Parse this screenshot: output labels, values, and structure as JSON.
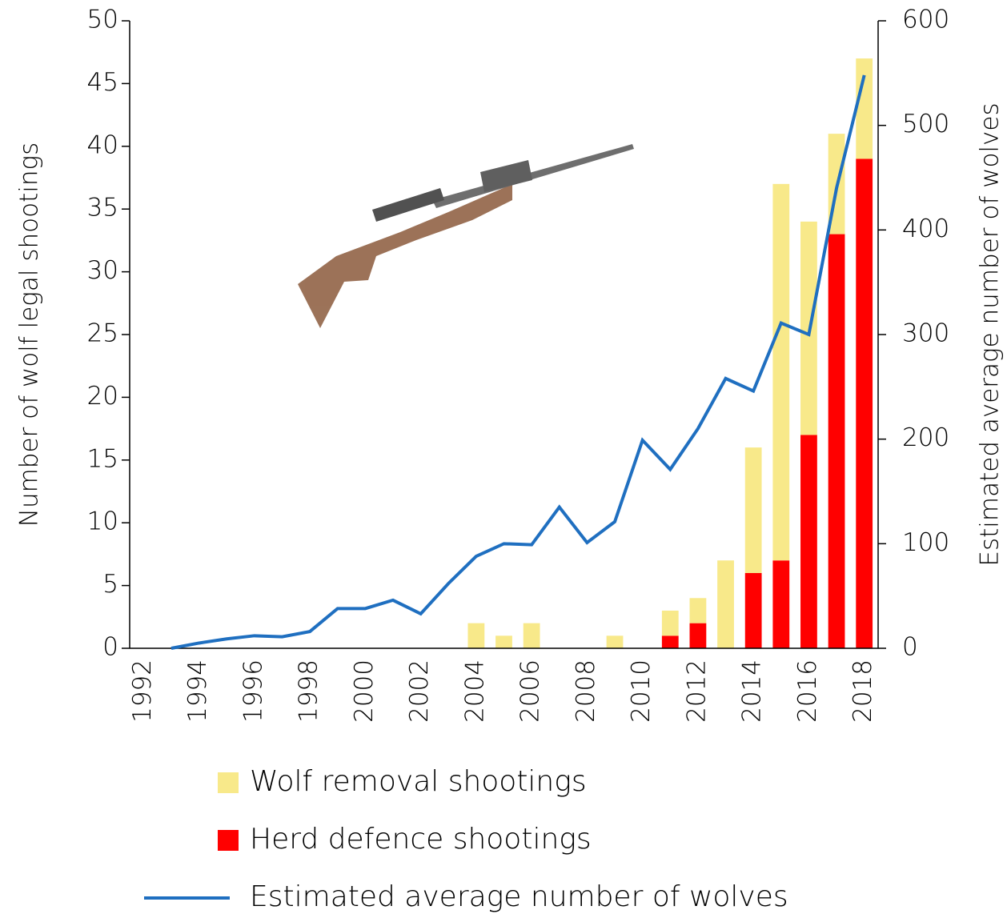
{
  "chart_data": {
    "type": "bar",
    "y_label": "Number of wolf legal shootings",
    "y2_label": "Estimated average number of wolves",
    "categories": [
      "1992",
      null,
      "1994",
      null,
      "1996",
      null,
      "1998",
      null,
      "2000",
      null,
      "2002",
      null,
      "2004",
      null,
      "2006",
      null,
      "2008",
      null,
      "2010",
      null,
      "2012",
      null,
      "2014",
      null,
      "2016",
      null,
      "2018"
    ],
    "stacked": true,
    "series": [
      {
        "name": "Herd defence shootings",
        "color": "#ff0000",
        "legend_order": 2,
        "values": [
          0,
          0,
          0,
          0,
          0,
          0,
          0,
          0,
          0,
          0,
          0,
          0,
          0,
          0,
          0,
          0,
          0,
          0,
          0,
          1,
          2,
          0,
          6,
          7,
          17,
          33,
          39
        ]
      },
      {
        "name": "Wolf removal shootings",
        "color": "#f8e98a",
        "legend_order": 1,
        "values": [
          0,
          0,
          0,
          0,
          0,
          0,
          0,
          0,
          0,
          0,
          0,
          0,
          2,
          1,
          2,
          0,
          0,
          1,
          0,
          2,
          2,
          7,
          10,
          30,
          17,
          8,
          8
        ]
      },
      {
        "name": "Estimated average number of wolves",
        "color": "#1f6fc0",
        "type": "line",
        "axis": "y2",
        "legend_order": 3,
        "values": [
          null,
          0,
          5,
          9,
          12,
          11,
          16,
          38,
          38,
          46,
          33,
          62,
          88,
          100,
          99,
          135,
          101,
          121,
          199,
          171,
          210,
          258,
          246,
          311,
          300,
          440,
          548
        ]
      }
    ],
    "ylim": [
      0,
      50
    ],
    "yticks": [
      0,
      5,
      10,
      15,
      20,
      25,
      30,
      35,
      40,
      45,
      50
    ],
    "y2lim": [
      0,
      600
    ],
    "y2ticks": [
      0,
      100,
      200,
      300,
      400,
      500,
      600
    ]
  }
}
